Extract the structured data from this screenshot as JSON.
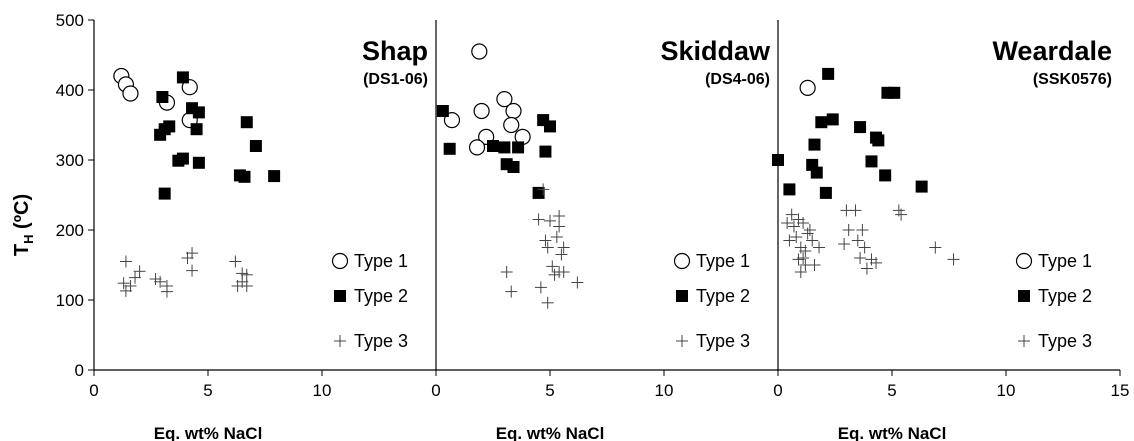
{
  "chart_data": {
    "type": "scatter",
    "ylabel": "T",
    "ylabel_sub": "H",
    "ylabel_unit": " (ºC)",
    "ylim": [
      0,
      500
    ],
    "yticks": [
      0,
      100,
      200,
      300,
      400,
      500
    ],
    "xlim": [
      0,
      15
    ],
    "grid": false,
    "legend_labels": [
      "Type 1",
      "Type 2",
      "Type 3"
    ],
    "colors": {
      "marker": "#000000",
      "open_fill": "#ffffff",
      "axis": "#000000"
    },
    "markers": {
      "Type 1": "open-circle",
      "Type 2": "filled-square",
      "Type 3": "plus"
    },
    "panels": [
      {
        "title": "Shap",
        "subtitle": "(DS1-06)",
        "xlabel": "Eq. wt% NaCl",
        "xticks": [
          0,
          5,
          10
        ],
        "series": [
          {
            "name": "Type 1",
            "points": [
              [
                1.2,
                420
              ],
              [
                1.4,
                408
              ],
              [
                1.6,
                395
              ],
              [
                3.2,
                382
              ],
              [
                4.2,
                404
              ],
              [
                4.2,
                357
              ]
            ]
          },
          {
            "name": "Type 2",
            "points": [
              [
                3.0,
                390
              ],
              [
                3.9,
                418
              ],
              [
                4.3,
                374
              ],
              [
                4.6,
                368
              ],
              [
                3.3,
                348
              ],
              [
                3.1,
                344
              ],
              [
                2.9,
                336
              ],
              [
                4.5,
                344
              ],
              [
                3.9,
                302
              ],
              [
                3.7,
                299
              ],
              [
                4.6,
                296
              ],
              [
                3.1,
                252
              ],
              [
                6.7,
                354
              ],
              [
                7.1,
                320
              ],
              [
                6.4,
                278
              ],
              [
                6.6,
                276
              ],
              [
                7.9,
                277
              ]
            ]
          },
          {
            "name": "Type 3",
            "points": [
              [
                1.4,
                155
              ],
              [
                1.3,
                124
              ],
              [
                1.6,
                120
              ],
              [
                1.4,
                113
              ],
              [
                1.8,
                132
              ],
              [
                2.0,
                141
              ],
              [
                2.7,
                130
              ],
              [
                2.9,
                126
              ],
              [
                3.2,
                120
              ],
              [
                3.2,
                112
              ],
              [
                4.1,
                160
              ],
              [
                4.3,
                167
              ],
              [
                4.3,
                142
              ],
              [
                6.2,
                155
              ],
              [
                6.5,
                138
              ],
              [
                6.7,
                136
              ],
              [
                6.5,
                126
              ],
              [
                6.7,
                120
              ],
              [
                6.3,
                120
              ]
            ]
          }
        ]
      },
      {
        "title": "Skiddaw",
        "subtitle": "(DS4-06)",
        "xlabel": "Eq. wt% NaCl",
        "xticks": [
          0,
          5,
          10
        ],
        "series": [
          {
            "name": "Type 1",
            "points": [
              [
                1.9,
                455
              ],
              [
                0.7,
                357
              ],
              [
                2.0,
                370
              ],
              [
                2.2,
                333
              ],
              [
                1.8,
                318
              ],
              [
                3.0,
                387
              ],
              [
                3.4,
                370
              ],
              [
                3.3,
                350
              ],
              [
                3.8,
                333
              ]
            ]
          },
          {
            "name": "Type 2",
            "points": [
              [
                0.3,
                370
              ],
              [
                0.6,
                316
              ],
              [
                2.5,
                320
              ],
              [
                3.0,
                318
              ],
              [
                3.1,
                294
              ],
              [
                3.4,
                290
              ],
              [
                3.6,
                318
              ],
              [
                4.7,
                357
              ],
              [
                5.0,
                348
              ],
              [
                4.8,
                312
              ],
              [
                4.5,
                253
              ]
            ]
          },
          {
            "name": "Type 3",
            "points": [
              [
                4.7,
                258
              ],
              [
                4.5,
                215
              ],
              [
                5.0,
                213
              ],
              [
                4.8,
                185
              ],
              [
                4.9,
                175
              ],
              [
                5.4,
                220
              ],
              [
                5.4,
                205
              ],
              [
                5.6,
                175
              ],
              [
                5.5,
                165
              ],
              [
                5.3,
                190
              ],
              [
                3.1,
                140
              ],
              [
                3.3,
                112
              ],
              [
                4.6,
                118
              ],
              [
                4.9,
                96
              ],
              [
                5.2,
                136
              ],
              [
                5.4,
                140
              ],
              [
                5.1,
                148
              ],
              [
                5.6,
                140
              ],
              [
                6.2,
                125
              ]
            ]
          }
        ]
      },
      {
        "title": "Weardale",
        "subtitle": "(SSK0576)",
        "xlabel": "Eq. wt% NaCl",
        "xticks": [
          0,
          5,
          10,
          15
        ],
        "series": [
          {
            "name": "Type 1",
            "points": [
              [
                1.3,
                403
              ]
            ]
          },
          {
            "name": "Type 2",
            "points": [
              [
                0.0,
                300
              ],
              [
                0.5,
                258
              ],
              [
                1.6,
                322
              ],
              [
                1.5,
                293
              ],
              [
                1.7,
                282
              ],
              [
                1.9,
                354
              ],
              [
                2.1,
                253
              ],
              [
                2.4,
                358
              ],
              [
                2.2,
                423
              ],
              [
                3.6,
                347
              ],
              [
                4.1,
                298
              ],
              [
                4.3,
                332
              ],
              [
                4.4,
                328
              ],
              [
                4.7,
                278
              ],
              [
                4.8,
                396
              ],
              [
                5.1,
                396
              ],
              [
                6.3,
                262
              ]
            ]
          },
          {
            "name": "Type 3",
            "points": [
              [
                0.4,
                210
              ],
              [
                0.6,
                222
              ],
              [
                0.7,
                205
              ],
              [
                0.8,
                190
              ],
              [
                0.5,
                185
              ],
              [
                0.9,
                215
              ],
              [
                1.0,
                175
              ],
              [
                1.1,
                160
              ],
              [
                1.2,
                150
              ],
              [
                1.0,
                140
              ],
              [
                1.3,
                195
              ],
              [
                1.4,
                200
              ],
              [
                1.5,
                185
              ],
              [
                1.2,
                170
              ],
              [
                0.9,
                158
              ],
              [
                1.6,
                150
              ],
              [
                1.1,
                210
              ],
              [
                1.8,
                175
              ],
              [
                3.0,
                228
              ],
              [
                3.4,
                228
              ],
              [
                3.1,
                200
              ],
              [
                2.9,
                180
              ],
              [
                3.5,
                185
              ],
              [
                3.7,
                200
              ],
              [
                3.8,
                175
              ],
              [
                3.6,
                160
              ],
              [
                3.9,
                145
              ],
              [
                4.1,
                158
              ],
              [
                4.3,
                153
              ],
              [
                5.3,
                228
              ],
              [
                5.4,
                222
              ],
              [
                6.9,
                175
              ],
              [
                7.7,
                158
              ]
            ]
          }
        ]
      }
    ]
  }
}
